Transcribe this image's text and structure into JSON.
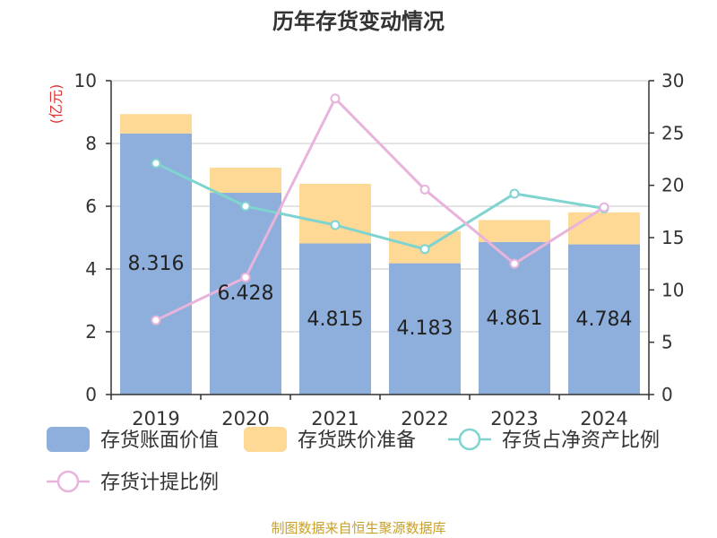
{
  "chart_data": {
    "type": "bar",
    "title": "历年存货变动情况",
    "categories": [
      "2019",
      "2020",
      "2021",
      "2022",
      "2023",
      "2024"
    ],
    "ylabel_left": "(亿元)",
    "ylim_left": [
      0,
      10
    ],
    "yticks_left": [
      "0",
      "2",
      "4",
      "6",
      "8",
      "10"
    ],
    "ylim_right": [
      0,
      30
    ],
    "yticks_right": [
      "0",
      "5",
      "10",
      "15",
      "20",
      "25",
      "30"
    ],
    "grid": true,
    "legend_position": "bottom",
    "series": [
      {
        "name": "存货账面价值",
        "type": "bar",
        "stack": "inventory",
        "axis": "left",
        "color": "#8eaedc",
        "values": [
          8.316,
          6.428,
          4.815,
          4.183,
          4.861,
          4.784
        ],
        "labels": [
          "8.316",
          "6.428",
          "4.815",
          "4.183",
          "4.861",
          "4.784"
        ]
      },
      {
        "name": "存货跌价准备",
        "type": "bar",
        "stack": "inventory",
        "axis": "left",
        "color": "#fdd995",
        "values": [
          0.62,
          0.8,
          1.9,
          1.02,
          0.7,
          1.02
        ]
      },
      {
        "name": "存货占净资产比例",
        "type": "line",
        "axis": "right",
        "color": "#7fd4d0",
        "values": [
          22.1,
          18.0,
          16.2,
          13.9,
          19.2,
          17.8
        ]
      },
      {
        "name": "存货计提比例",
        "type": "line",
        "axis": "right",
        "color": "#e8b4dc",
        "values": [
          7.1,
          11.2,
          28.3,
          19.6,
          12.5,
          17.9
        ]
      }
    ]
  },
  "footer": "制图数据来自恒生聚源数据库"
}
